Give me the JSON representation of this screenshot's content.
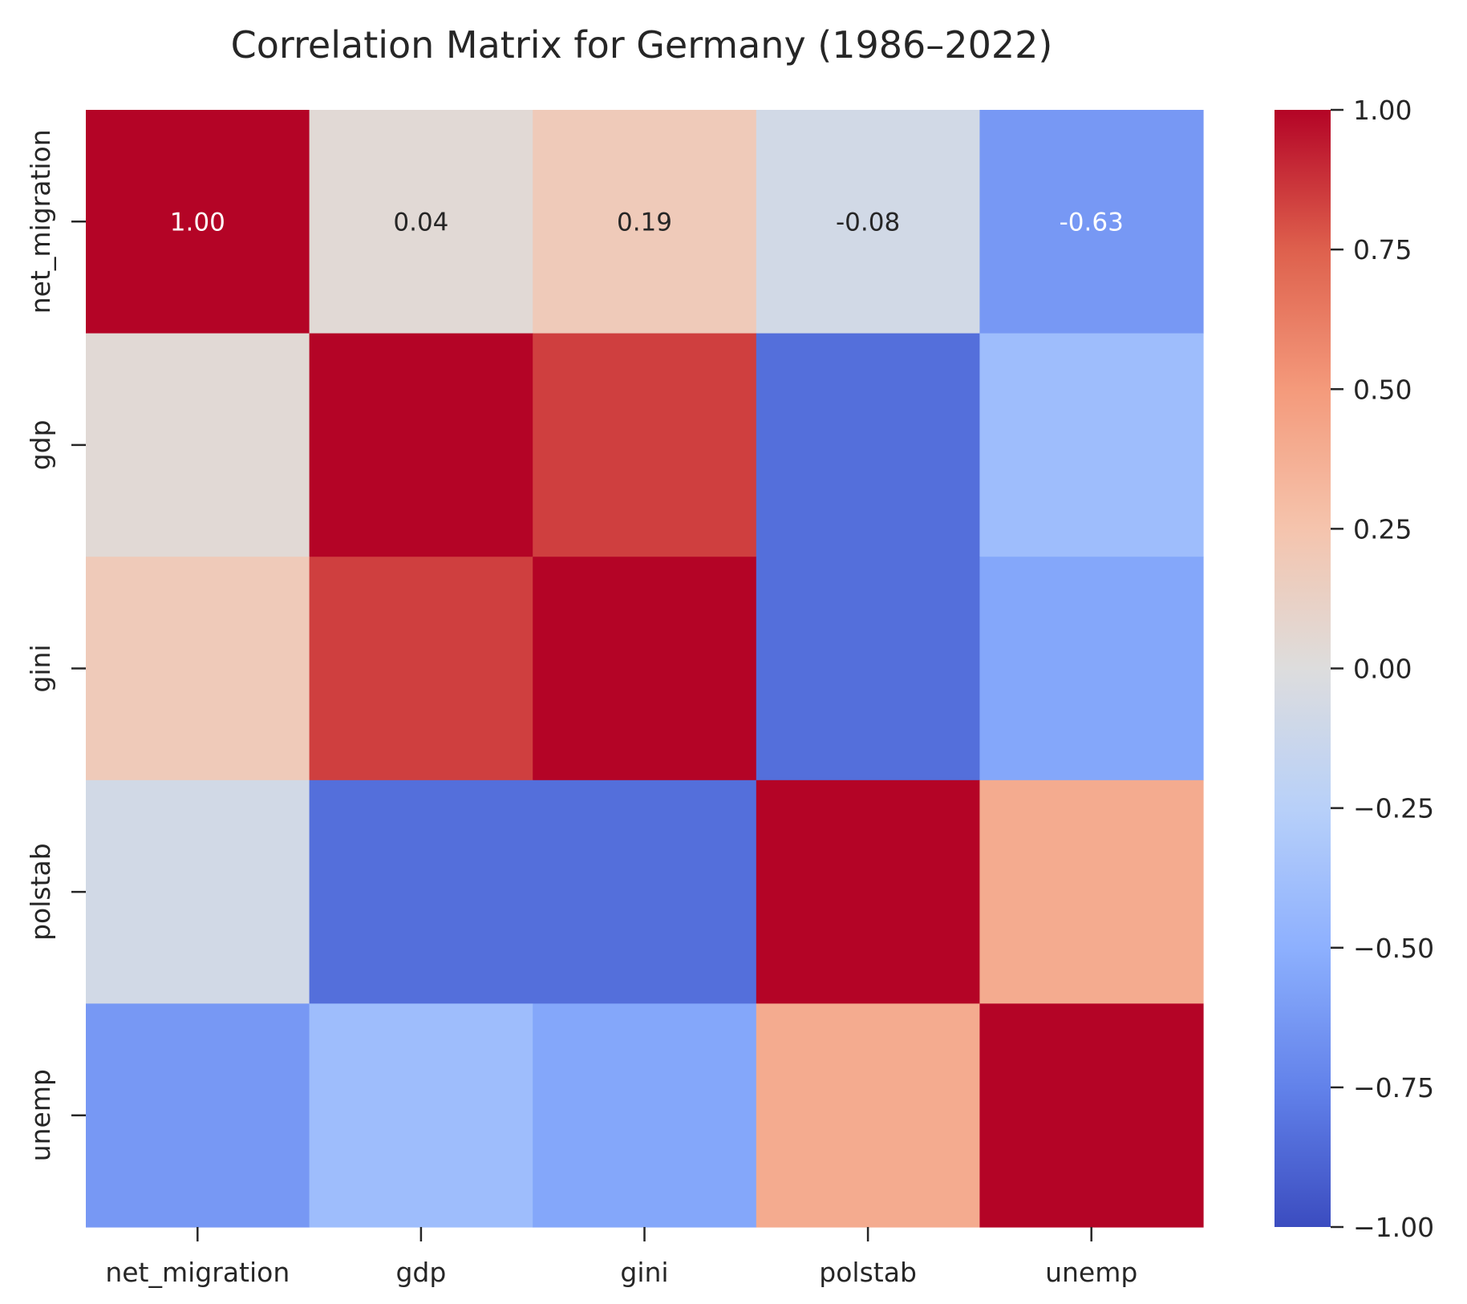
{
  "chart_data": {
    "type": "heatmap",
    "title": "Correlation Matrix for Germany (1986–2022)",
    "xlabel": "",
    "ylabel": "",
    "variables": [
      "net_migration",
      "gdp",
      "gini",
      "polstab",
      "unemp"
    ],
    "values": [
      [
        1.0,
        0.04,
        0.19,
        -0.08,
        -0.63
      ],
      [
        0.04,
        1.0,
        0.84,
        -0.84,
        -0.4
      ],
      [
        0.19,
        0.84,
        1.0,
        -0.84,
        -0.55
      ],
      [
        -0.08,
        -0.84,
        -0.84,
        1.0,
        0.4
      ],
      [
        -0.63,
        -0.4,
        -0.55,
        0.4,
        1.0
      ]
    ],
    "annotations": [
      [
        "1.00",
        "0.04",
        "0.19",
        "-0.08",
        "-0.63"
      ]
    ],
    "colormap": "coolwarm",
    "vmin": -1.0,
    "vmax": 1.0,
    "colorbar_ticks": [
      "1.00",
      "0.75",
      "0.50",
      "0.25",
      "0.00",
      "−0.25",
      "−0.50",
      "−0.75",
      "−1.00"
    ],
    "grid": false,
    "legend": "colorbar-right"
  }
}
